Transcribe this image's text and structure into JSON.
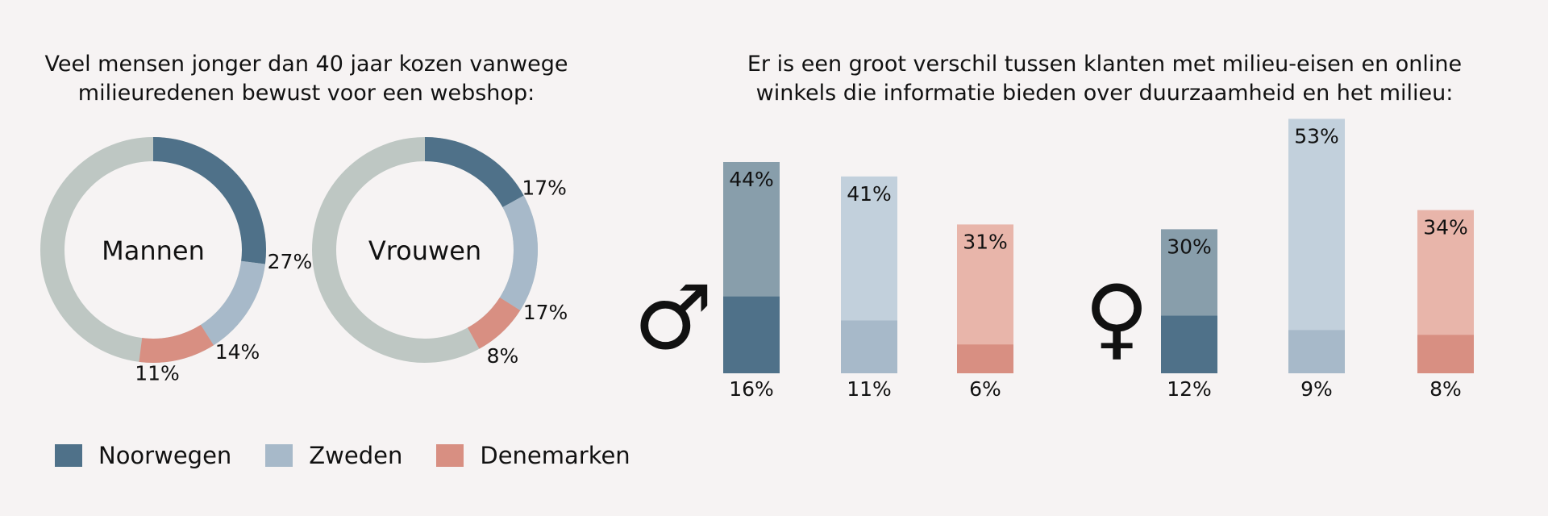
{
  "colors": {
    "noorwegen": "#4f7189",
    "zweden": "#a7b9c9",
    "denemarken": "#d88f82",
    "rest": "#bec7c3",
    "noorwegen_light": "#889eab",
    "zweden_light": "#c2d0dc",
    "denemarken_light": "#e8b5aa"
  },
  "legend": {
    "items": [
      {
        "label": "Noorwegen",
        "color": "#4f7189"
      },
      {
        "label": "Zweden",
        "color": "#a7b9c9"
      },
      {
        "label": "Denemarken",
        "color": "#d88f82"
      }
    ]
  },
  "chart_data": [
    {
      "type": "pie",
      "title": "Veel mensen jonger dan 40 jaar kozen vanwege milieuredenen bewust voor een webshop:",
      "donuts": [
        {
          "center_label": "Mannen",
          "slices": [
            {
              "name": "Noorwegen",
              "value": 27,
              "label": "27%"
            },
            {
              "name": "Zweden",
              "value": 14,
              "label": "14%"
            },
            {
              "name": "Denemarken",
              "value": 11,
              "label": "11%"
            }
          ]
        },
        {
          "center_label": "Vrouwen",
          "slices": [
            {
              "name": "Noorwegen",
              "value": 17,
              "label": "17%"
            },
            {
              "name": "Zweden",
              "value": 17,
              "label": "17%"
            },
            {
              "name": "Denemarken",
              "value": 8,
              "label": "8%"
            }
          ]
        }
      ]
    },
    {
      "type": "bar",
      "title": "Er is een groot verschil tussen klanten met milieu-eisen en online winkels die informatie bieden over duurzaamheid en het milieu:",
      "categories": [
        "Noorwegen",
        "Zweden",
        "Denemarken"
      ],
      "ylim": [
        0,
        55
      ],
      "groups": [
        {
          "symbol": "♂",
          "series": [
            {
              "name": "Noorwegen",
              "total": 44,
              "total_label": "44%",
              "part": 16,
              "part_label": "16%"
            },
            {
              "name": "Zweden",
              "total": 41,
              "total_label": "41%",
              "part": 11,
              "part_label": "11%"
            },
            {
              "name": "Denemarken",
              "total": 31,
              "total_label": "31%",
              "part": 6,
              "part_label": "6%"
            }
          ]
        },
        {
          "symbol": "♀",
          "series": [
            {
              "name": "Noorwegen",
              "total": 30,
              "total_label": "30%",
              "part": 12,
              "part_label": "12%"
            },
            {
              "name": "Zweden",
              "total": 53,
              "total_label": "53%",
              "part": 9,
              "part_label": "9%"
            },
            {
              "name": "Denemarken",
              "total": 34,
              "total_label": "34%",
              "part": 8,
              "part_label": "8%"
            }
          ]
        }
      ]
    }
  ]
}
